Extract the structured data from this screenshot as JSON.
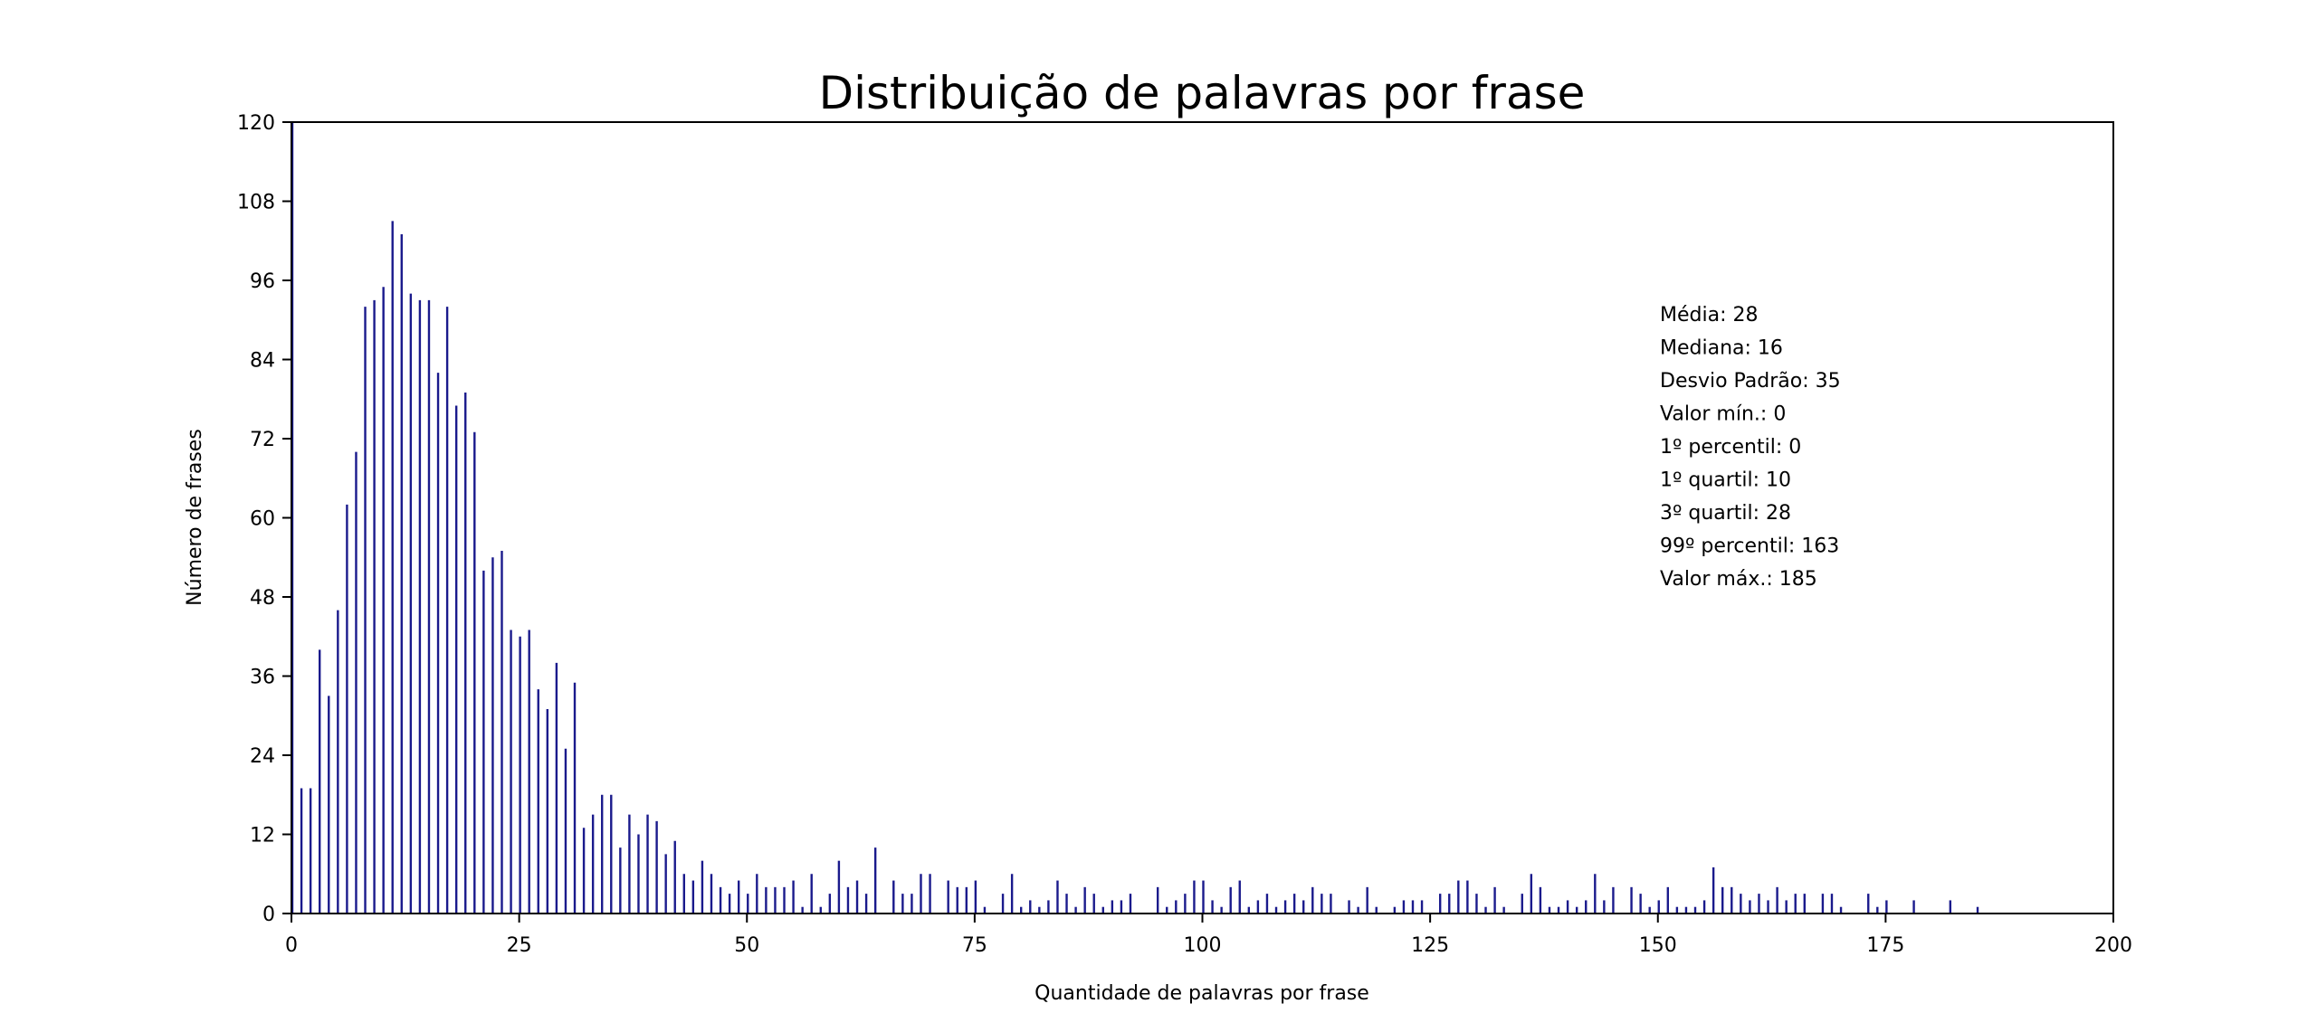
{
  "chart_data": {
    "type": "bar",
    "title": "Distribuição de palavras por frase",
    "xlabel": "Quantidade de palavras por frase",
    "ylabel": "Número de frases",
    "xlim": [
      0,
      200
    ],
    "ylim": [
      0,
      120
    ],
    "x_ticks": [
      0,
      25,
      50,
      75,
      100,
      125,
      150,
      175,
      200
    ],
    "y_ticks": [
      0,
      12,
      24,
      36,
      48,
      60,
      72,
      84,
      96,
      108,
      120
    ],
    "grid": false,
    "bar_color": "#1a1a8c",
    "stats": [
      "Média: 28",
      "Mediana: 16",
      "Desvio Padrão: 35",
      "Valor mín.: 0",
      "1º percentil: 0",
      "1º quartil: 10",
      "3º quartil: 28",
      "99º percentil: 163",
      "Valor máx.: 185"
    ],
    "x": [
      0,
      1,
      2,
      3,
      4,
      5,
      6,
      7,
      8,
      9,
      10,
      11,
      12,
      13,
      14,
      15,
      16,
      17,
      18,
      19,
      20,
      21,
      22,
      23,
      24,
      25,
      26,
      27,
      28,
      29,
      30,
      31,
      32,
      33,
      34,
      35,
      36,
      37,
      38,
      39,
      40,
      41,
      42,
      43,
      44,
      45,
      46,
      47,
      48,
      49,
      50,
      51,
      52,
      53,
      54,
      55,
      56,
      57,
      58,
      59,
      60,
      61,
      62,
      63,
      64,
      66,
      67,
      68,
      69,
      70,
      72,
      73,
      74,
      75,
      76,
      78,
      79,
      80,
      81,
      82,
      83,
      84,
      85,
      86,
      87,
      88,
      89,
      90,
      91,
      92,
      95,
      96,
      97,
      98,
      99,
      100,
      101,
      102,
      103,
      104,
      105,
      106,
      107,
      108,
      109,
      110,
      111,
      112,
      113,
      114,
      116,
      117,
      118,
      119,
      121,
      122,
      123,
      124,
      126,
      127,
      128,
      129,
      130,
      131,
      132,
      133,
      135,
      136,
      137,
      138,
      139,
      140,
      141,
      142,
      143,
      144,
      145,
      147,
      148,
      149,
      150,
      151,
      152,
      153,
      154,
      155,
      156,
      157,
      158,
      159,
      160,
      161,
      162,
      163,
      164,
      165,
      166,
      168,
      169,
      170,
      173,
      174,
      175,
      178,
      182,
      185
    ],
    "values": [
      120,
      19,
      19,
      40,
      33,
      46,
      62,
      70,
      92,
      93,
      95,
      105,
      103,
      94,
      93,
      93,
      82,
      92,
      77,
      79,
      73,
      52,
      54,
      55,
      43,
      42,
      43,
      34,
      31,
      38,
      25,
      35,
      13,
      15,
      18,
      18,
      10,
      15,
      12,
      15,
      14,
      9,
      11,
      6,
      5,
      8,
      6,
      4,
      3,
      5,
      3,
      6,
      4,
      4,
      4,
      5,
      1,
      6,
      1,
      3,
      8,
      4,
      5,
      3,
      10,
      5,
      3,
      3,
      6,
      6,
      5,
      4,
      4,
      5,
      1,
      3,
      6,
      1,
      2,
      1,
      2,
      5,
      3,
      1,
      4,
      3,
      1,
      2,
      2,
      3,
      4,
      1,
      2,
      3,
      5,
      5,
      2,
      1,
      4,
      5,
      1,
      2,
      3,
      1,
      2,
      3,
      2,
      4,
      3,
      3,
      2,
      1,
      4,
      1,
      1,
      2,
      2,
      2,
      3,
      3,
      5,
      5,
      3,
      1,
      4,
      1,
      3,
      6,
      4,
      1,
      1,
      2,
      1,
      2,
      6,
      2,
      4,
      4,
      3,
      1,
      2,
      4,
      1,
      1,
      1,
      2,
      7,
      4,
      4,
      3,
      2,
      3,
      2,
      4,
      2,
      3,
      3,
      3,
      3,
      1,
      3,
      1,
      2,
      2,
      2,
      1
    ]
  }
}
